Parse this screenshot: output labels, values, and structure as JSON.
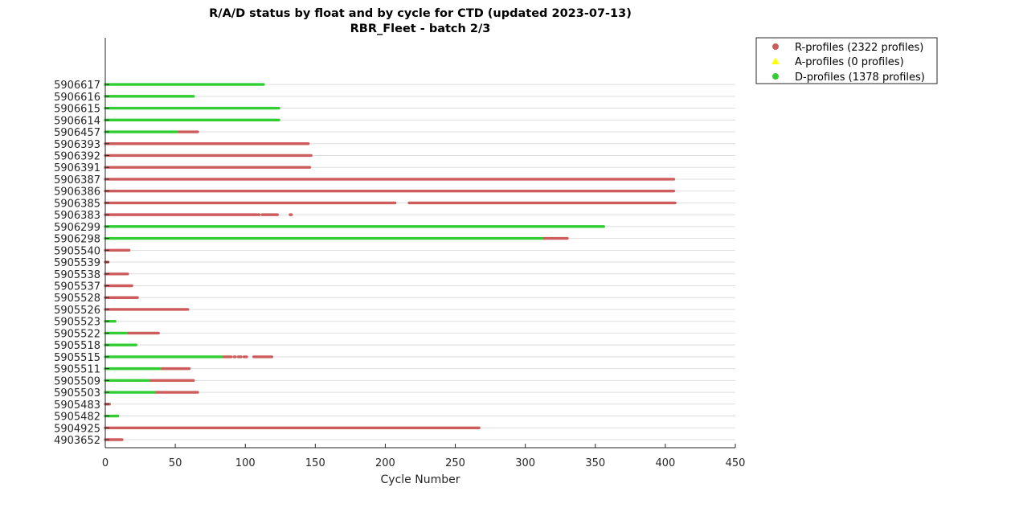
{
  "chart_data": {
    "type": "scatter",
    "title": "R/A/D status by float and by cycle for CTD (updated 2023-07-13)",
    "subtitle": "RBR_Fleet - batch 2/3",
    "xlabel": "Cycle Number",
    "ylabel": "",
    "xlim": [
      0,
      450
    ],
    "xticks": [
      0,
      50,
      100,
      150,
      200,
      250,
      300,
      350,
      400,
      450
    ],
    "grid": "horizontal",
    "legend_placement": "outside-top-right",
    "floats": [
      "4903652",
      "5904925",
      "5905482",
      "5905483",
      "5905503",
      "5905509",
      "5905511",
      "5905515",
      "5905518",
      "5905522",
      "5905523",
      "5905526",
      "5905528",
      "5905537",
      "5905538",
      "5905539",
      "5905540",
      "5906298",
      "5906299",
      "5906383",
      "5906385",
      "5906386",
      "5906387",
      "5906391",
      "5906392",
      "5906393",
      "5906457",
      "5906614",
      "5906615",
      "5906616",
      "5906617"
    ],
    "series": [
      {
        "name": "R-profiles (2322 profiles)",
        "color": "#cd5c5c",
        "marker": "circle",
        "ranges": [
          {
            "float": "4903652",
            "start": 0,
            "end": 12
          },
          {
            "float": "5904925",
            "start": 0,
            "end": 267
          },
          {
            "float": "5905483",
            "start": 0,
            "end": 3
          },
          {
            "float": "5905503",
            "start": 36,
            "end": 66
          },
          {
            "float": "5905509",
            "start": 32,
            "end": 63
          },
          {
            "float": "5905511",
            "start": 40,
            "end": 60
          },
          {
            "float": "5905515",
            "start": 84,
            "end": 90
          },
          {
            "float": "5905515",
            "start": 92,
            "end": 93
          },
          {
            "float": "5905515",
            "start": 95,
            "end": 97
          },
          {
            "float": "5905515",
            "start": 99,
            "end": 101
          },
          {
            "float": "5905515",
            "start": 106,
            "end": 119
          },
          {
            "float": "5905522",
            "start": 16,
            "end": 38
          },
          {
            "float": "5905526",
            "start": 0,
            "end": 59
          },
          {
            "float": "5905528",
            "start": 0,
            "end": 23
          },
          {
            "float": "5905537",
            "start": 0,
            "end": 19
          },
          {
            "float": "5905538",
            "start": 0,
            "end": 16
          },
          {
            "float": "5905539",
            "start": 0,
            "end": 2
          },
          {
            "float": "5905540",
            "start": 0,
            "end": 17
          },
          {
            "float": "5906298",
            "start": 313,
            "end": 330
          },
          {
            "float": "5906383",
            "start": 0,
            "end": 108
          },
          {
            "float": "5906383",
            "start": 109,
            "end": 110
          },
          {
            "float": "5906383",
            "start": 112,
            "end": 123
          },
          {
            "float": "5906383",
            "start": 132,
            "end": 133
          },
          {
            "float": "5906385",
            "start": 0,
            "end": 207
          },
          {
            "float": "5906385",
            "start": 217,
            "end": 407
          },
          {
            "float": "5906386",
            "start": 0,
            "end": 406
          },
          {
            "float": "5906387",
            "start": 0,
            "end": 406
          },
          {
            "float": "5906391",
            "start": 0,
            "end": 146
          },
          {
            "float": "5906392",
            "start": 0,
            "end": 147
          },
          {
            "float": "5906393",
            "start": 0,
            "end": 145
          },
          {
            "float": "5906457",
            "start": 52,
            "end": 66
          }
        ]
      },
      {
        "name": "A-profiles (0 profiles)",
        "color": "#ffff00",
        "marker": "triangle",
        "ranges": []
      },
      {
        "name": "D-profiles (1378 profiles)",
        "color": "#32cd32",
        "marker": "circle",
        "ranges": [
          {
            "float": "5905482",
            "start": 0,
            "end": 9
          },
          {
            "float": "5905503",
            "start": 0,
            "end": 35
          },
          {
            "float": "5905509",
            "start": 0,
            "end": 31
          },
          {
            "float": "5905511",
            "start": 0,
            "end": 39
          },
          {
            "float": "5905515",
            "start": 0,
            "end": 83
          },
          {
            "float": "5905518",
            "start": 0,
            "end": 22
          },
          {
            "float": "5905522",
            "start": 0,
            "end": 15
          },
          {
            "float": "5905523",
            "start": 0,
            "end": 7
          },
          {
            "float": "5906298",
            "start": 0,
            "end": 312
          },
          {
            "float": "5906299",
            "start": 0,
            "end": 356
          },
          {
            "float": "5906457",
            "start": 0,
            "end": 51
          },
          {
            "float": "5906614",
            "start": 0,
            "end": 124
          },
          {
            "float": "5906615",
            "start": 0,
            "end": 124
          },
          {
            "float": "5906616",
            "start": 0,
            "end": 63
          },
          {
            "float": "5906617",
            "start": 0,
            "end": 113
          }
        ]
      }
    ]
  }
}
